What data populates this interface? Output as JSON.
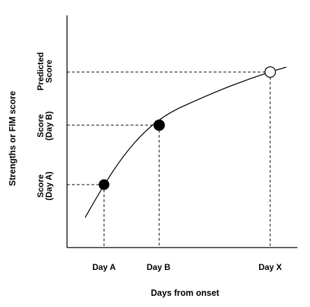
{
  "axes": {
    "xlabel": "Days from onset",
    "ylabel": "Strengths or FIM score"
  },
  "x_ticks": [
    "Day A",
    "Day B",
    "Day X"
  ],
  "y_labels": [
    {
      "line1": "Score",
      "line2": "(Day A)"
    },
    {
      "line1": "Score",
      "line2": "(Day B)"
    },
    {
      "line1": "Predicted",
      "line2": "Score"
    }
  ],
  "points": [
    {
      "label": "Day A",
      "kind": "observed",
      "fill": "#000000"
    },
    {
      "label": "Day B",
      "kind": "observed",
      "fill": "#000000"
    },
    {
      "label": "Day X",
      "kind": "predicted",
      "fill": "#ffffff"
    }
  ]
}
